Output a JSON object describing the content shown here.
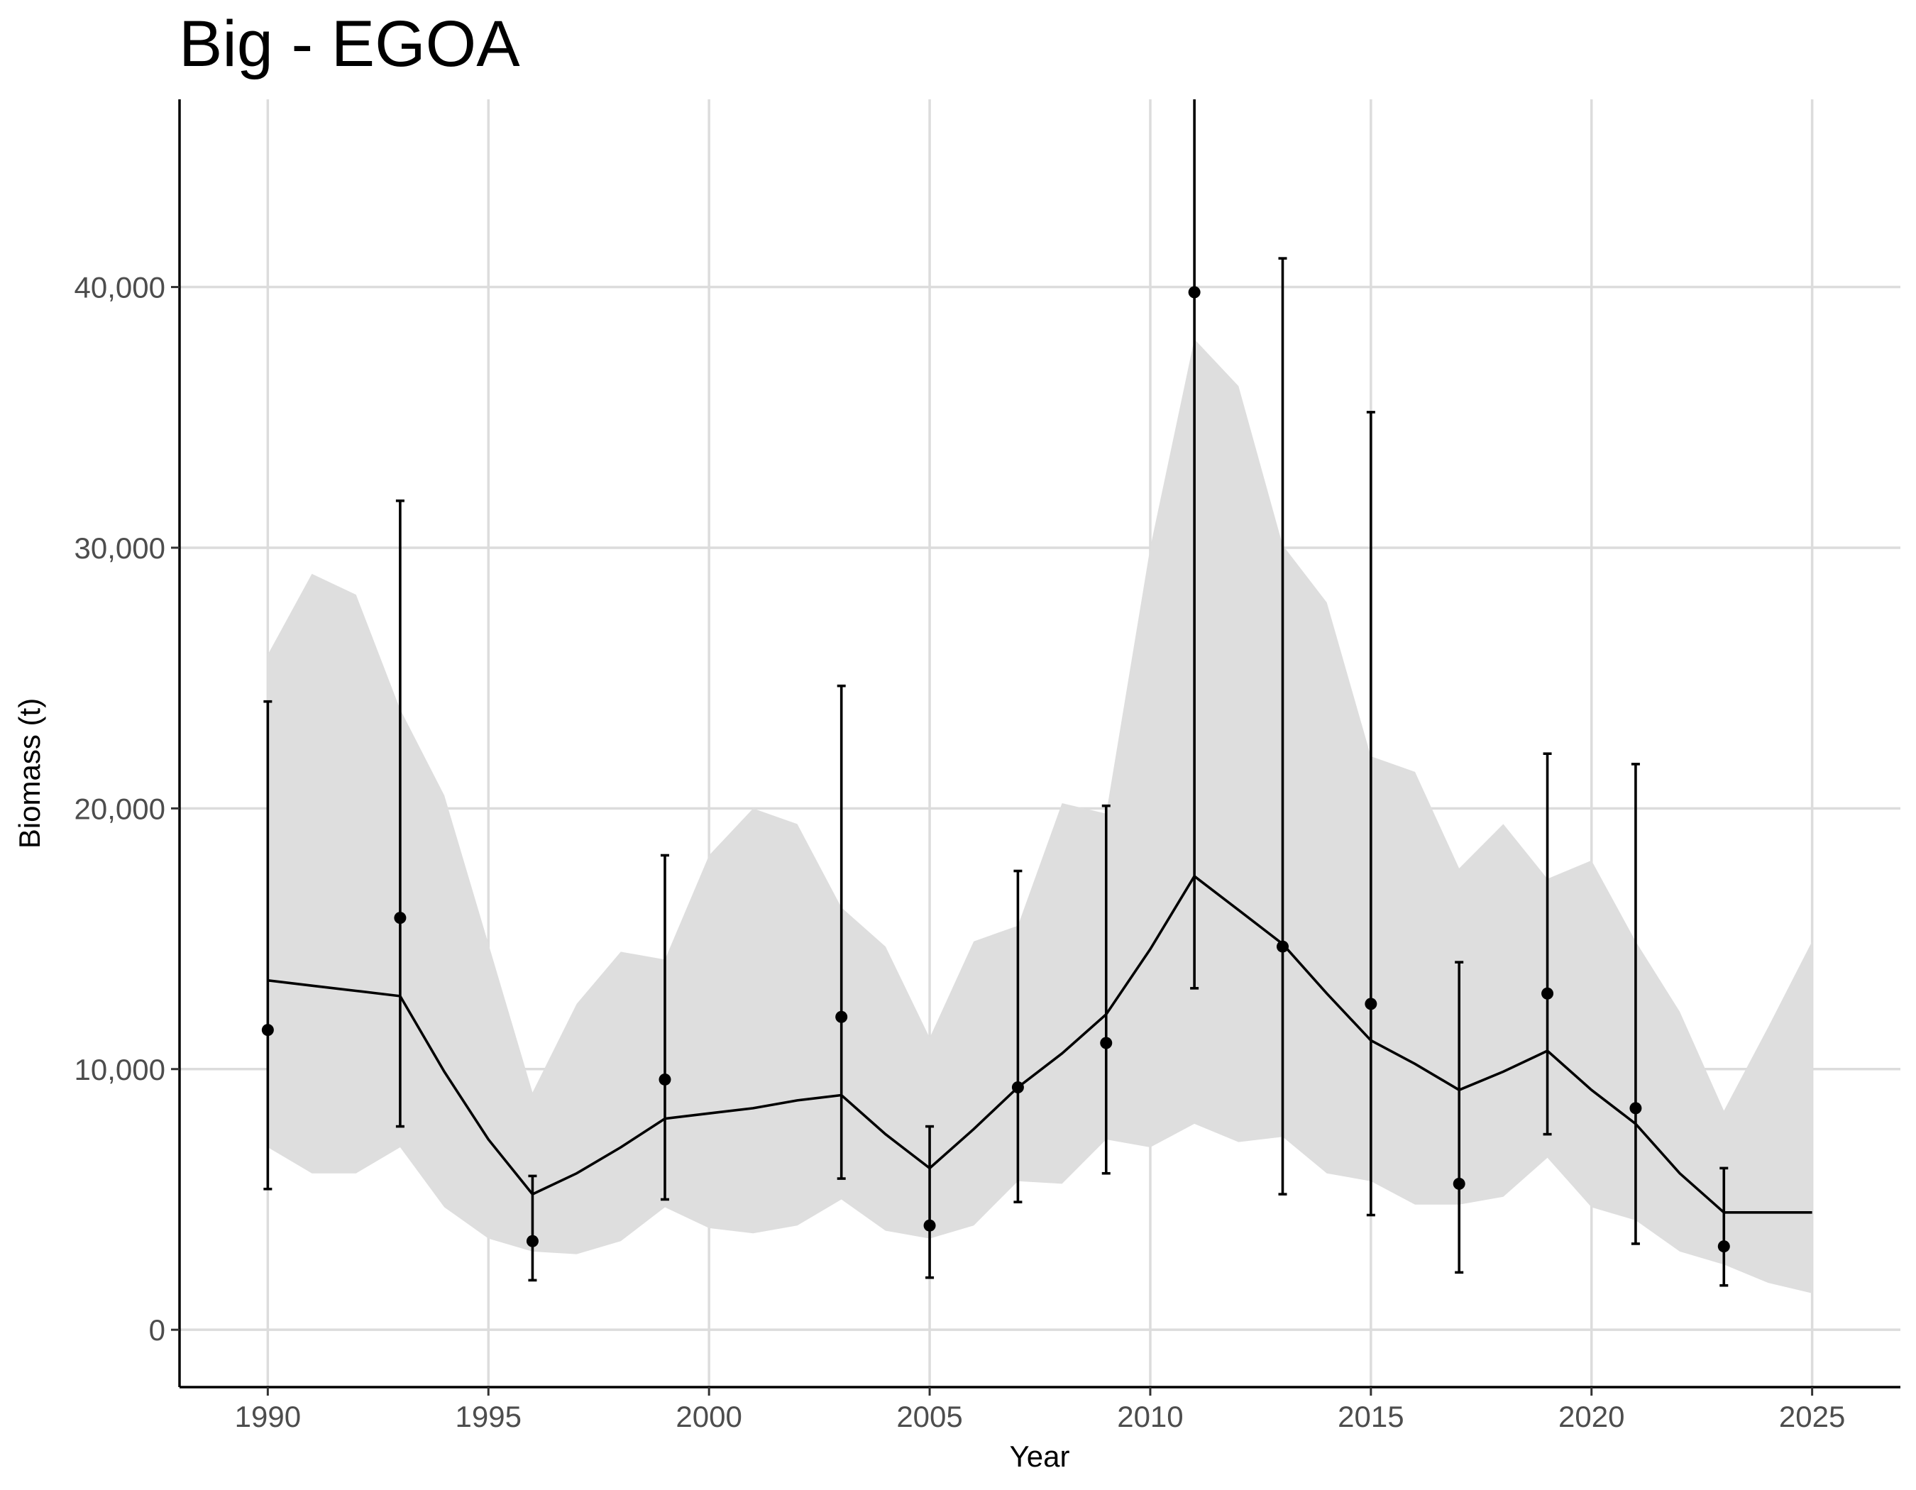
{
  "chart_data": {
    "type": "line",
    "title": "Big - EGOA",
    "xlabel": "Year",
    "ylabel": "Biomass (t)",
    "xlim": [
      1988,
      2027
    ],
    "ylim": [
      -2200,
      47200
    ],
    "x_ticks": [
      1990,
      1995,
      2000,
      2005,
      2010,
      2015,
      2020,
      2025
    ],
    "x_tick_labels": [
      "1990",
      "1995",
      "2000",
      "2005",
      "2010",
      "2015",
      "2020",
      "2025"
    ],
    "y_ticks": [
      0,
      10000,
      20000,
      30000,
      40000
    ],
    "y_tick_labels": [
      "0",
      "10,000",
      "20,000",
      "30,000",
      "40,000"
    ],
    "grid": true,
    "legend": "none",
    "series": [
      {
        "kind": "model_estimate_with_ci",
        "color": "#000000",
        "band_color": "#dedede",
        "points": [
          {
            "x": 1990,
            "y": 13400,
            "lower": 7000,
            "upper": 25900
          },
          {
            "x": 1991,
            "y": 13200,
            "lower": 6000,
            "upper": 29000
          },
          {
            "x": 1992,
            "y": 13000,
            "lower": 6000,
            "upper": 28200
          },
          {
            "x": 1993,
            "y": 12800,
            "lower": 7000,
            "upper": 23800
          },
          {
            "x": 1994,
            "y": 9900,
            "lower": 4700,
            "upper": 20500
          },
          {
            "x": 1995,
            "y": 7300,
            "lower": 3500,
            "upper": 14800
          },
          {
            "x": 1996,
            "y": 5200,
            "lower": 3000,
            "upper": 9100
          },
          {
            "x": 1997,
            "y": 6000,
            "lower": 2900,
            "upper": 12500
          },
          {
            "x": 1998,
            "y": 7000,
            "lower": 3400,
            "upper": 14500
          },
          {
            "x": 1999,
            "y": 8100,
            "lower": 4700,
            "upper": 14200
          },
          {
            "x": 2000,
            "y": 8300,
            "lower": 3900,
            "upper": 18200
          },
          {
            "x": 2001,
            "y": 8500,
            "lower": 3700,
            "upper": 20000
          },
          {
            "x": 2002,
            "y": 8800,
            "lower": 4000,
            "upper": 19400
          },
          {
            "x": 2003,
            "y": 9000,
            "lower": 5000,
            "upper": 16200
          },
          {
            "x": 2004,
            "y": 7500,
            "lower": 3800,
            "upper": 14700
          },
          {
            "x": 2005,
            "y": 6200,
            "lower": 3500,
            "upper": 11200
          },
          {
            "x": 2006,
            "y": 7700,
            "lower": 4000,
            "upper": 14900
          },
          {
            "x": 2007,
            "y": 9300,
            "lower": 5700,
            "upper": 15500
          },
          {
            "x": 2008,
            "y": 10600,
            "lower": 5600,
            "upper": 20200
          },
          {
            "x": 2009,
            "y": 12100,
            "lower": 7300,
            "upper": 19800
          },
          {
            "x": 2010,
            "y": 14600,
            "lower": 7000,
            "upper": 30000
          },
          {
            "x": 2011,
            "y": 17400,
            "lower": 7900,
            "upper": 38000
          },
          {
            "x": 2012,
            "y": 16100,
            "lower": 7200,
            "upper": 36200
          },
          {
            "x": 2013,
            "y": 14800,
            "lower": 7400,
            "upper": 30100
          },
          {
            "x": 2014,
            "y": 12900,
            "lower": 6000,
            "upper": 27900
          },
          {
            "x": 2015,
            "y": 11100,
            "lower": 5700,
            "upper": 22000
          },
          {
            "x": 2016,
            "y": 10200,
            "lower": 4800,
            "upper": 21400
          },
          {
            "x": 2017,
            "y": 9200,
            "lower": 4800,
            "upper": 17700
          },
          {
            "x": 2018,
            "y": 9900,
            "lower": 5100,
            "upper": 19400
          },
          {
            "x": 2019,
            "y": 10700,
            "lower": 6600,
            "upper": 17300
          },
          {
            "x": 2020,
            "y": 9200,
            "lower": 4700,
            "upper": 18000
          },
          {
            "x": 2021,
            "y": 7900,
            "lower": 4200,
            "upper": 14900
          },
          {
            "x": 2022,
            "y": 6000,
            "lower": 3000,
            "upper": 12200
          },
          {
            "x": 2023,
            "y": 4500,
            "lower": 2500,
            "upper": 8400
          },
          {
            "x": 2024,
            "y": 4500,
            "lower": 1800,
            "upper": 11600
          },
          {
            "x": 2025,
            "y": 4500,
            "lower": 1400,
            "upper": 14900
          }
        ]
      },
      {
        "kind": "observations_with_error_bars",
        "color": "#000000",
        "points": [
          {
            "x": 1990,
            "y": 11500,
            "lower": 5400,
            "upper": 24100
          },
          {
            "x": 1993,
            "y": 15800,
            "lower": 7800,
            "upper": 31800
          },
          {
            "x": 1996,
            "y": 3400,
            "lower": 1900,
            "upper": 5900
          },
          {
            "x": 1999,
            "y": 9600,
            "lower": 5000,
            "upper": 18200
          },
          {
            "x": 2003,
            "y": 12000,
            "lower": 5800,
            "upper": 24700
          },
          {
            "x": 2005,
            "y": 4000,
            "lower": 2000,
            "upper": 7800
          },
          {
            "x": 2007,
            "y": 9300,
            "lower": 4900,
            "upper": 17600
          },
          {
            "x": 2009,
            "y": 11000,
            "lower": 6000,
            "upper": 20100
          },
          {
            "x": 2011,
            "y": 39800,
            "lower": 13100,
            "upper": 48000
          },
          {
            "x": 2013,
            "y": 14700,
            "lower": 5200,
            "upper": 41100
          },
          {
            "x": 2015,
            "y": 12500,
            "lower": 4400,
            "upper": 35200
          },
          {
            "x": 2017,
            "y": 5600,
            "lower": 2200,
            "upper": 14100
          },
          {
            "x": 2019,
            "y": 12900,
            "lower": 7500,
            "upper": 22100
          },
          {
            "x": 2021,
            "y": 8500,
            "lower": 3300,
            "upper": 21700
          },
          {
            "x": 2023,
            "y": 3200,
            "lower": 1700,
            "upper": 6200
          }
        ]
      }
    ]
  }
}
